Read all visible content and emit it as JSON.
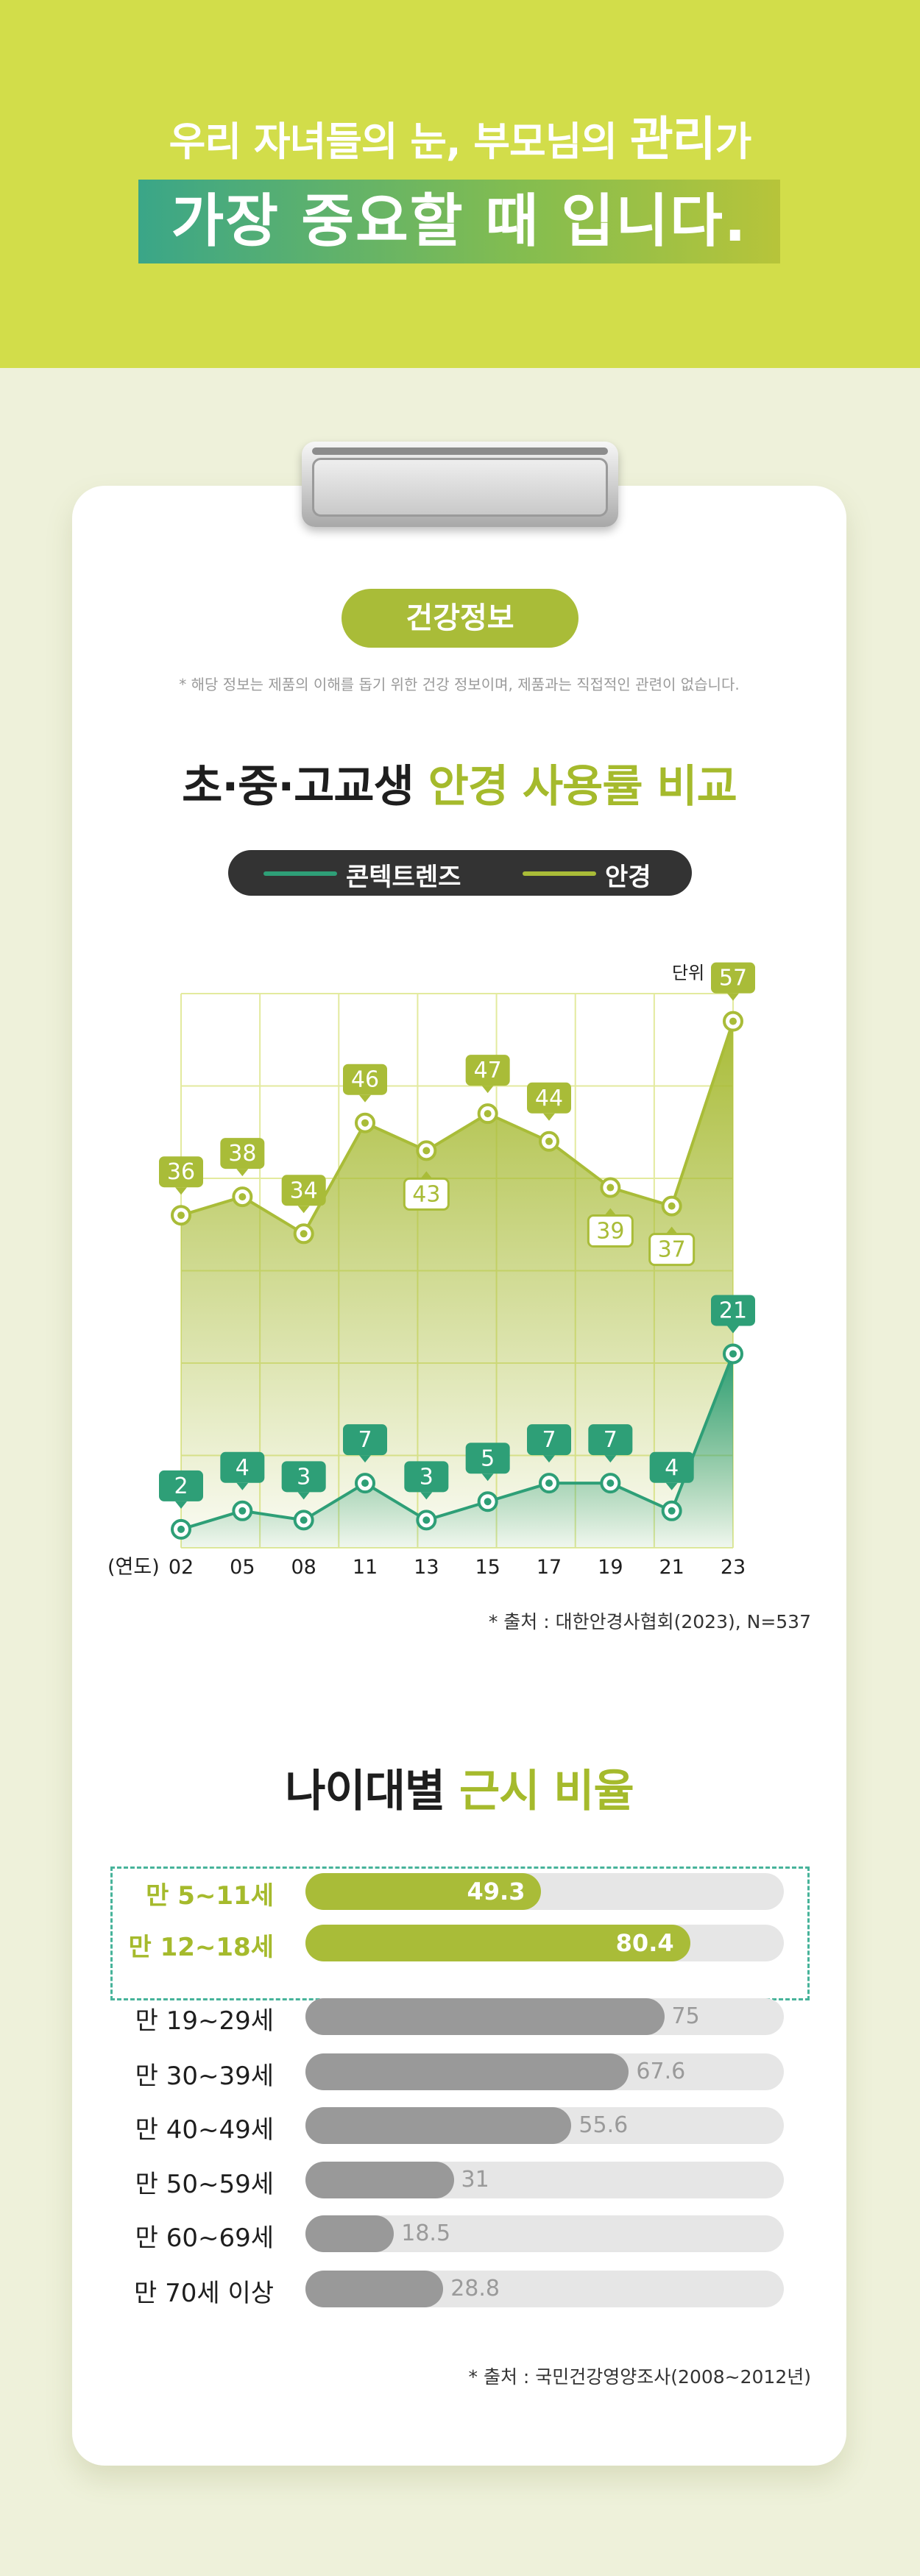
{
  "header": {
    "line1_pre": "우리 자녀들의 눈, 부모님의 ",
    "line1_em": "관리",
    "line1_post": "가",
    "line2": "가장 중요할 때 입니다."
  },
  "card": {
    "pill": "건강정보",
    "notice": "* 해당 정보는 제품의 이해를 돕기 위한 건강 정보이며, 제품과는 직접적인 관련이 없습니다."
  },
  "colors": {
    "contact": "#2e9f77",
    "glasses": "#a9bc38",
    "header_bg": "#d2dd4a",
    "gray_bar": "#999999"
  },
  "chart_data": [
    {
      "type": "line",
      "title_main": "초·중·고교생 ",
      "title_highlight": "안경 사용률 비교",
      "unit_label": "단위 : %",
      "x_prefix": "(연도)",
      "categories": [
        "02",
        "05",
        "08",
        "11",
        "13",
        "15",
        "17",
        "19",
        "21",
        "23"
      ],
      "series": [
        {
          "name": "콘텍트렌즈",
          "values": [
            2,
            4,
            3,
            7,
            3,
            5,
            7,
            7,
            4,
            21
          ]
        },
        {
          "name": "안경",
          "values": [
            36,
            38,
            34,
            46,
            43,
            47,
            44,
            39,
            37,
            57
          ]
        }
      ],
      "ylim": [
        0,
        60
      ],
      "legend": "top",
      "grid": true,
      "source": "* 출처 : 대한안경사협회(2023), N=537"
    },
    {
      "type": "bar",
      "orientation": "horizontal",
      "title_main": "나이대별 ",
      "title_highlight": "근시 비율",
      "categories": [
        "만 5~11세",
        "만 12~18세",
        "만 19~29세",
        "만 30~39세",
        "만 40~49세",
        "만 50~59세",
        "만 60~69세",
        "만 70세 이상"
      ],
      "values": [
        49.3,
        80.4,
        75,
        67.6,
        55.6,
        31,
        18.5,
        28.8
      ],
      "highlighted": [
        0,
        1
      ],
      "xlim": [
        0,
        100
      ],
      "source": "* 출처 : 국민건강영양조사(2008~2012년)"
    }
  ]
}
